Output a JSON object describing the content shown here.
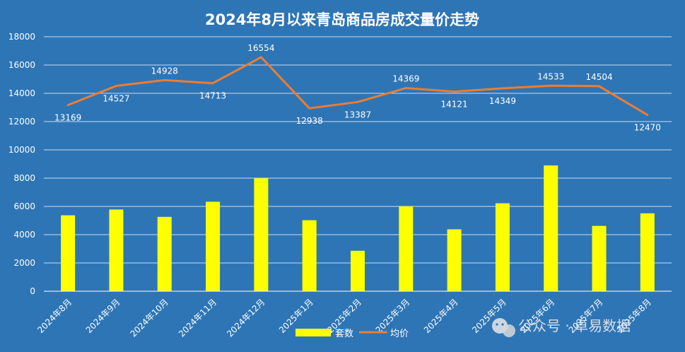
{
  "chart_data": {
    "type": "bar",
    "title": "2024年8月以来青岛商品房成交量价走势",
    "categories": [
      "2024年8月",
      "2024年9月",
      "2024年10月",
      "2024年11月",
      "2024年12月",
      "2025年1月",
      "2025年2月",
      "2025年3月",
      "2025年4月",
      "2025年5月",
      "2025年6月",
      "2025年7月",
      "2025年8月"
    ],
    "ylim": [
      0,
      18000
    ],
    "yticks": [
      0,
      2000,
      4000,
      6000,
      8000,
      10000,
      12000,
      14000,
      16000,
      18000
    ],
    "grid": true,
    "legend_position": "bottom",
    "series": [
      {
        "name": "套数",
        "type": "bar",
        "color": "#ffff00",
        "values": [
          5370,
          5780,
          5260,
          6330,
          7990,
          5020,
          2860,
          6000,
          4380,
          6220,
          8900,
          4620,
          5510
        ]
      },
      {
        "name": "均价",
        "type": "line",
        "color": "#ed7d31",
        "values": [
          13169,
          14527,
          14928,
          14713,
          16554,
          12938,
          13387,
          14369,
          14121,
          14349,
          14533,
          14504,
          12470
        ]
      }
    ]
  },
  "watermark": {
    "text": "公众号 · 卓易数据",
    "icon": "wechat-icon"
  }
}
